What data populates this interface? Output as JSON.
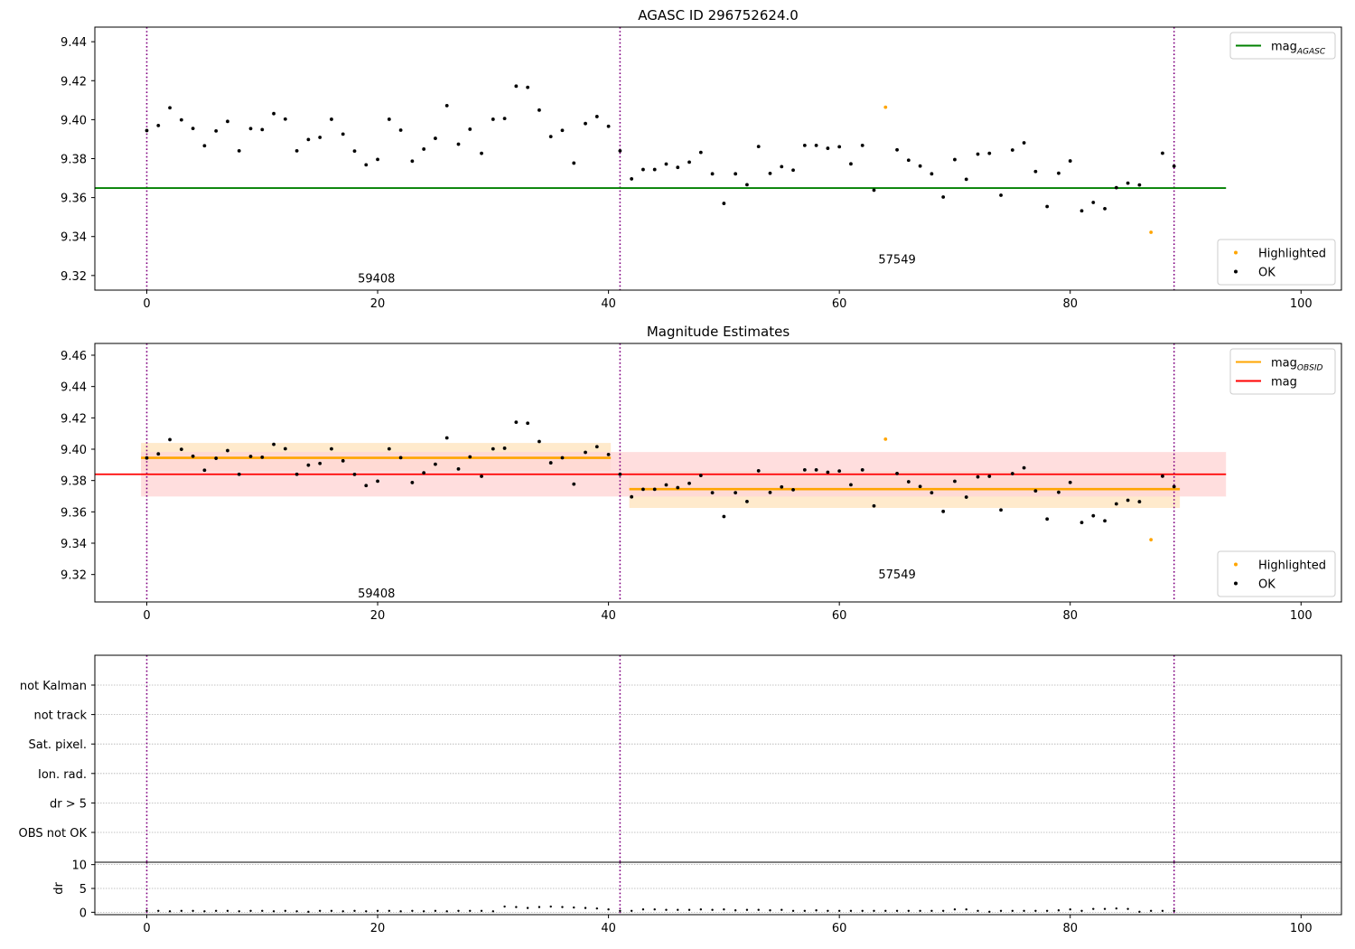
{
  "colors": {
    "ok": "#000000",
    "highlighted": "#ffa500",
    "agasc_line": "#008000",
    "obsid_line": "#ffa500",
    "obsid_band": "#ffe5bf",
    "mag_line": "#ff0000",
    "mag_band": "#ffd6d6",
    "obs_boundary": "#800080",
    "grid": "#b0b0b0"
  },
  "chart_data": [
    {
      "type": "scatter",
      "title": "AGASC ID 296752624.0",
      "xlim": [
        -4.5,
        103.5
      ],
      "ylim": [
        9.3125,
        9.4475
      ],
      "xticks": [
        0,
        20,
        40,
        60,
        80,
        100
      ],
      "yticks": [
        9.32,
        9.34,
        9.36,
        9.38,
        9.4,
        9.42,
        9.44
      ],
      "obs_boundaries": [
        0,
        41,
        89
      ],
      "obs_labels": [
        {
          "text": "59408",
          "x": 19.9,
          "y": 9.3165
        },
        {
          "text": "57549",
          "x": 65.0,
          "y": 9.3262
        }
      ],
      "lines": [
        {
          "name": "mag",
          "sub": "AGASC",
          "x": [
            -4.5,
            93.5
          ],
          "y": [
            9.3649,
            9.3649
          ],
          "color": "agasc_line"
        }
      ],
      "legend_lines": [
        {
          "main": "mag",
          "sub": "AGASC",
          "color": "agasc_line"
        }
      ],
      "legend_points": [
        {
          "name": "Highlighted",
          "color": "highlighted"
        },
        {
          "name": "OK",
          "color": "ok"
        }
      ],
      "ok_x": [
        0,
        1,
        2,
        3,
        4,
        5,
        6,
        7,
        8,
        9,
        10,
        11,
        12,
        13,
        14,
        15,
        16,
        17,
        18,
        19,
        20,
        21,
        22,
        23,
        24,
        25,
        26,
        27,
        28,
        29,
        30,
        31,
        32,
        33,
        34,
        35,
        36,
        37,
        38,
        39,
        40,
        41,
        42,
        43,
        44,
        45,
        46,
        47,
        48,
        49,
        50,
        51,
        52,
        53,
        54,
        55,
        56,
        57,
        58,
        59,
        60,
        61,
        62,
        63,
        65,
        66,
        67,
        68,
        69,
        70,
        71,
        72,
        73,
        74,
        75,
        76,
        77,
        78,
        79,
        80,
        81,
        82,
        83,
        84,
        85,
        86,
        88,
        89
      ],
      "ok_y": [
        9.3944,
        9.397,
        9.4061,
        9.3999,
        9.3955,
        9.3866,
        9.3942,
        9.3991,
        9.384,
        9.3954,
        9.3949,
        9.4031,
        9.4003,
        9.384,
        9.3898,
        9.3909,
        9.4002,
        9.3926,
        9.3839,
        9.3768,
        9.3796,
        9.4002,
        9.3946,
        9.3787,
        9.3849,
        9.3904,
        9.4072,
        9.3874,
        9.3951,
        9.3827,
        9.4002,
        9.4006,
        9.4172,
        9.4166,
        9.4049,
        9.3913,
        9.3945,
        9.3777,
        9.398,
        9.4016,
        9.3966,
        9.384,
        9.3696,
        9.3744,
        9.3744,
        9.3772,
        9.3755,
        9.3782,
        9.3832,
        9.3722,
        9.357,
        9.3722,
        9.3666,
        9.3862,
        9.3724,
        9.3759,
        9.3741,
        9.3868,
        9.3868,
        9.3853,
        9.3861,
        9.3773,
        9.3868,
        9.3638,
        9.3845,
        9.3792,
        9.3762,
        9.3722,
        9.3603,
        9.3795,
        9.3694,
        9.3823,
        9.3827,
        9.3612,
        9.3844,
        9.3881,
        9.3734,
        9.3554,
        9.3725,
        9.3788,
        9.3532,
        9.3575,
        9.3543,
        9.3651,
        9.3674,
        9.3665,
        9.3828,
        9.3761
      ],
      "hl_x": [
        64,
        87
      ],
      "hl_y": [
        9.4064,
        9.3422
      ]
    },
    {
      "type": "scatter",
      "title": "Magnitude Estimates",
      "xlim": [
        -4.5,
        103.5
      ],
      "ylim": [
        9.3025,
        9.4675
      ],
      "xticks": [
        0,
        20,
        40,
        60,
        80,
        100
      ],
      "yticks": [
        9.32,
        9.34,
        9.36,
        9.38,
        9.4,
        9.42,
        9.44,
        9.46
      ],
      "obs_boundaries": [
        0,
        41,
        89
      ],
      "obs_labels": [
        {
          "text": "59408",
          "x": 19.9,
          "y": 9.3055
        },
        {
          "text": "57549",
          "x": 65.0,
          "y": 9.3175
        }
      ],
      "bands": [
        {
          "x": [
            -0.5,
            40.2
          ],
          "y": [
            9.386,
            9.404
          ],
          "color": "obsid_band"
        },
        {
          "x": [
            41.8,
            89.5
          ],
          "y": [
            9.3625,
            9.386
          ],
          "color": "obsid_band"
        },
        {
          "x": [
            -0.5,
            93.5
          ],
          "y": [
            9.3698,
            9.3982
          ],
          "color": "mag_band"
        }
      ],
      "lines": [
        {
          "name": "mag",
          "sub": "OBSID",
          "x": [
            -0.5,
            40.2
          ],
          "y": [
            9.3945,
            9.3945
          ],
          "color": "obsid_line"
        },
        {
          "name": "mag",
          "sub": "OBSID",
          "x": [
            41.8,
            89.5
          ],
          "y": [
            9.3745,
            9.3745
          ],
          "color": "obsid_line"
        },
        {
          "name": "mag",
          "x": [
            -4.5,
            93.5
          ],
          "y": [
            9.384,
            9.384
          ],
          "color": "mag_line"
        }
      ],
      "legend_lines": [
        {
          "main": "mag",
          "sub": "OBSID",
          "color": "obsid_line"
        },
        {
          "main": "mag",
          "sub": "",
          "color": "mag_line"
        }
      ],
      "legend_points": [
        {
          "name": "Highlighted",
          "color": "highlighted"
        },
        {
          "name": "OK",
          "color": "ok"
        }
      ],
      "ok_x": [
        0,
        1,
        2,
        3,
        4,
        5,
        6,
        7,
        8,
        9,
        10,
        11,
        12,
        13,
        14,
        15,
        16,
        17,
        18,
        19,
        20,
        21,
        22,
        23,
        24,
        25,
        26,
        27,
        28,
        29,
        30,
        31,
        32,
        33,
        34,
        35,
        36,
        37,
        38,
        39,
        40,
        41,
        42,
        43,
        44,
        45,
        46,
        47,
        48,
        49,
        50,
        51,
        52,
        53,
        54,
        55,
        56,
        57,
        58,
        59,
        60,
        61,
        62,
        63,
        65,
        66,
        67,
        68,
        69,
        70,
        71,
        72,
        73,
        74,
        75,
        76,
        77,
        78,
        79,
        80,
        81,
        82,
        83,
        84,
        85,
        86,
        88,
        89
      ],
      "ok_y": [
        9.3944,
        9.397,
        9.4061,
        9.3999,
        9.3955,
        9.3866,
        9.3942,
        9.3991,
        9.384,
        9.3954,
        9.3949,
        9.4031,
        9.4003,
        9.384,
        9.3898,
        9.3909,
        9.4002,
        9.3926,
        9.3839,
        9.3768,
        9.3796,
        9.4002,
        9.3946,
        9.3787,
        9.3849,
        9.3904,
        9.4072,
        9.3874,
        9.3951,
        9.3827,
        9.4002,
        9.4006,
        9.4172,
        9.4166,
        9.4049,
        9.3913,
        9.3945,
        9.3777,
        9.398,
        9.4016,
        9.3966,
        9.384,
        9.3696,
        9.3744,
        9.3744,
        9.3772,
        9.3755,
        9.3782,
        9.3832,
        9.3722,
        9.357,
        9.3722,
        9.3666,
        9.3862,
        9.3724,
        9.3759,
        9.3741,
        9.3868,
        9.3868,
        9.3853,
        9.3861,
        9.3773,
        9.3868,
        9.3638,
        9.3845,
        9.3792,
        9.3762,
        9.3722,
        9.3603,
        9.3795,
        9.3694,
        9.3823,
        9.3827,
        9.3612,
        9.3844,
        9.3881,
        9.3734,
        9.3554,
        9.3725,
        9.3788,
        9.3532,
        9.3575,
        9.3543,
        9.3651,
        9.3674,
        9.3665,
        9.3828,
        9.3761
      ],
      "hl_x": [
        64,
        87
      ],
      "hl_y": [
        9.4064,
        9.3422
      ]
    },
    {
      "type": "scatter",
      "title": "",
      "categories": [
        "not Kalman",
        "not track",
        "Sat. pixel.",
        "Ion. rad.",
        "dr > 5",
        "OBS not OK"
      ],
      "flag_points": [],
      "xlim": [
        -4.5,
        103.5
      ],
      "obs_boundaries": [
        0,
        41,
        89
      ]
    },
    {
      "type": "scatter",
      "title": "",
      "ylabel": "dr",
      "xlim": [
        -4.5,
        103.5
      ],
      "ylim": [
        -0.5,
        10.5
      ],
      "xticks": [
        0,
        20,
        40,
        60,
        80,
        100
      ],
      "yticks": [
        0,
        5,
        10
      ],
      "obs_boundaries": [
        0,
        41,
        89
      ],
      "x": [
        0,
        1,
        2,
        3,
        4,
        5,
        6,
        7,
        8,
        9,
        10,
        11,
        12,
        13,
        14,
        15,
        16,
        17,
        18,
        19,
        20,
        21,
        22,
        23,
        24,
        25,
        26,
        27,
        28,
        29,
        30,
        31,
        32,
        33,
        34,
        35,
        36,
        37,
        38,
        39,
        40,
        41,
        42,
        43,
        44,
        45,
        46,
        47,
        48,
        49,
        50,
        51,
        52,
        53,
        54,
        55,
        56,
        57,
        58,
        59,
        60,
        61,
        62,
        63,
        64,
        65,
        66,
        67,
        68,
        69,
        70,
        71,
        72,
        73,
        74,
        75,
        76,
        77,
        78,
        79,
        80,
        81,
        82,
        83,
        84,
        85,
        86,
        87,
        88,
        89
      ],
      "y": [
        0.3,
        0.3,
        0.2,
        0.3,
        0.3,
        0.2,
        0.3,
        0.3,
        0.2,
        0.3,
        0.3,
        0.2,
        0.3,
        0.2,
        0.1,
        0.3,
        0.3,
        0.2,
        0.3,
        0.2,
        0.3,
        0.3,
        0.2,
        0.3,
        0.2,
        0.3,
        0.2,
        0.3,
        0.3,
        0.3,
        0.2,
        1.2,
        1.1,
        0.9,
        1.1,
        1.2,
        1.1,
        1.0,
        0.9,
        0.8,
        0.6,
        0.3,
        0.3,
        0.6,
        0.6,
        0.5,
        0.5,
        0.5,
        0.6,
        0.5,
        0.6,
        0.4,
        0.5,
        0.5,
        0.4,
        0.5,
        0.3,
        0.3,
        0.4,
        0.3,
        0.3,
        0.3,
        0.3,
        0.3,
        0.3,
        0.3,
        0.3,
        0.3,
        0.3,
        0.3,
        0.6,
        0.6,
        0.3,
        0.1,
        0.3,
        0.3,
        0.3,
        0.3,
        0.3,
        0.4,
        0.6,
        0.3,
        0.7,
        0.7,
        0.8,
        0.7,
        0.1,
        0.3,
        0.3,
        0.3
      ]
    }
  ]
}
